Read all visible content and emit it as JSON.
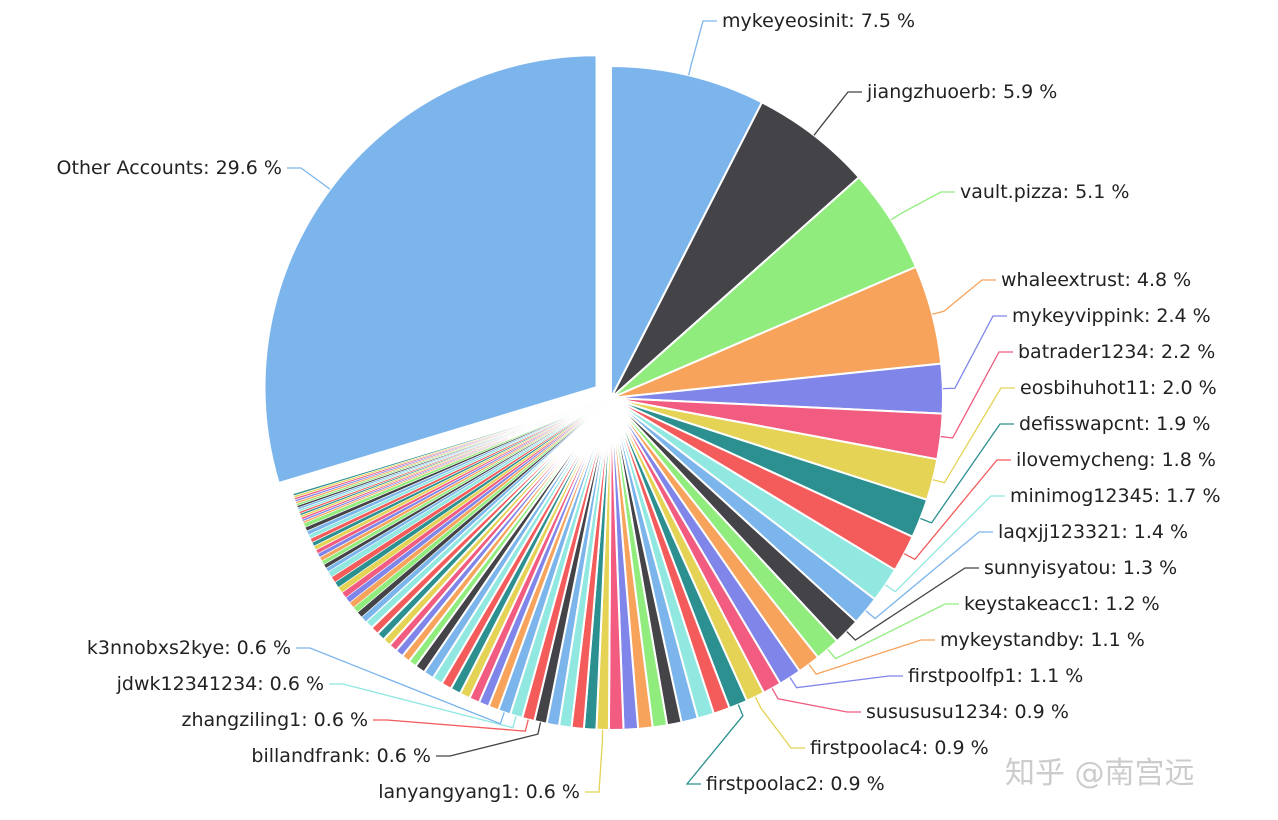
{
  "chart_data": {
    "type": "pie",
    "slices": [
      {
        "label": "mykeyeosinit",
        "value": 7.5,
        "color": "#7cb5ec",
        "labelled": true
      },
      {
        "label": "jiangzhuoerb",
        "value": 5.9,
        "color": "#434348",
        "labelled": true
      },
      {
        "label": "vault.pizza",
        "value": 5.1,
        "color": "#90ed7d",
        "labelled": true
      },
      {
        "label": "whaleextrust",
        "value": 4.8,
        "color": "#f7a35c",
        "labelled": true
      },
      {
        "label": "mykeyvippink",
        "value": 2.4,
        "color": "#8085e9",
        "labelled": true
      },
      {
        "label": "batrader1234",
        "value": 2.2,
        "color": "#f15c80",
        "labelled": true
      },
      {
        "label": "eosbihuhot11",
        "value": 2.0,
        "color": "#e4d354",
        "labelled": true
      },
      {
        "label": "defisswapcnt",
        "value": 1.9,
        "color": "#2b908f",
        "labelled": true
      },
      {
        "label": "ilovemycheng",
        "value": 1.8,
        "color": "#f45b5b",
        "labelled": true
      },
      {
        "label": "minimog12345",
        "value": 1.7,
        "color": "#91e8e1",
        "labelled": true
      },
      {
        "label": "laqxjj123321",
        "value": 1.4,
        "color": "#7cb5ec",
        "labelled": true
      },
      {
        "label": "sunnyisyatou",
        "value": 1.3,
        "color": "#434348",
        "labelled": true
      },
      {
        "label": "keystakeacc1",
        "value": 1.2,
        "color": "#90ed7d",
        "labelled": true
      },
      {
        "label": "mykeystandby",
        "value": 1.1,
        "color": "#f7a35c",
        "labelled": true
      },
      {
        "label": "firstpoolfp1",
        "value": 1.1,
        "color": "#8085e9",
        "labelled": true
      },
      {
        "label": "susususu1234",
        "value": 0.9,
        "color": "#f15c80",
        "labelled": true
      },
      {
        "label": "firstpoolac4",
        "value": 0.9,
        "color": "#e4d354",
        "labelled": true
      },
      {
        "label": "firstpoolac2",
        "value": 0.9,
        "color": "#2b908f",
        "labelled": true
      },
      {
        "label": "",
        "value": 0.8,
        "color": "#f45b5b",
        "labelled": false
      },
      {
        "label": "",
        "value": 0.8,
        "color": "#91e8e1",
        "labelled": false
      },
      {
        "label": "",
        "value": 0.8,
        "color": "#7cb5ec",
        "labelled": false
      },
      {
        "label": "",
        "value": 0.7,
        "color": "#434348",
        "labelled": false
      },
      {
        "label": "",
        "value": 0.7,
        "color": "#90ed7d",
        "labelled": false
      },
      {
        "label": "",
        "value": 0.7,
        "color": "#f7a35c",
        "labelled": false
      },
      {
        "label": "",
        "value": 0.7,
        "color": "#8085e9",
        "labelled": false
      },
      {
        "label": "",
        "value": 0.7,
        "color": "#f15c80",
        "labelled": false
      },
      {
        "label": "lanyangyang1",
        "value": 0.6,
        "color": "#e4d354",
        "labelled": true
      },
      {
        "label": "",
        "value": 0.6,
        "color": "#2b908f",
        "labelled": false
      },
      {
        "label": "",
        "value": 0.6,
        "color": "#f45b5b",
        "labelled": false
      },
      {
        "label": "",
        "value": 0.6,
        "color": "#91e8e1",
        "labelled": false
      },
      {
        "label": "",
        "value": 0.6,
        "color": "#7cb5ec",
        "labelled": false
      },
      {
        "label": "billandfrank",
        "value": 0.6,
        "color": "#434348",
        "labelled": true
      },
      {
        "label": "zhangziling1",
        "value": 0.6,
        "color": "#f45b5b",
        "labelled": true
      },
      {
        "label": "jdwk12341234",
        "value": 0.6,
        "color": "#91e8e1",
        "labelled": true
      },
      {
        "label": "k3nnobxs2kye",
        "value": 0.6,
        "color": "#7cb5ec",
        "labelled": true
      },
      {
        "label": "",
        "value": 0.5,
        "color": "#f7a35c",
        "labelled": false
      },
      {
        "label": "",
        "value": 0.5,
        "color": "#8085e9",
        "labelled": false
      },
      {
        "label": "",
        "value": 0.5,
        "color": "#f15c80",
        "labelled": false
      },
      {
        "label": "",
        "value": 0.5,
        "color": "#e4d354",
        "labelled": false
      },
      {
        "label": "",
        "value": 0.5,
        "color": "#2b908f",
        "labelled": false
      },
      {
        "label": "",
        "value": 0.5,
        "color": "#f45b5b",
        "labelled": false
      },
      {
        "label": "",
        "value": 0.5,
        "color": "#91e8e1",
        "labelled": false
      },
      {
        "label": "",
        "value": 0.5,
        "color": "#7cb5ec",
        "labelled": false
      },
      {
        "label": "",
        "value": 0.5,
        "color": "#434348",
        "labelled": false
      },
      {
        "label": "",
        "value": 0.4,
        "color": "#90ed7d",
        "labelled": false
      },
      {
        "label": "",
        "value": 0.4,
        "color": "#f7a35c",
        "labelled": false
      },
      {
        "label": "",
        "value": 0.4,
        "color": "#8085e9",
        "labelled": false
      },
      {
        "label": "",
        "value": 0.4,
        "color": "#f15c80",
        "labelled": false
      },
      {
        "label": "",
        "value": 0.4,
        "color": "#e4d354",
        "labelled": false
      },
      {
        "label": "",
        "value": 0.4,
        "color": "#2b908f",
        "labelled": false
      },
      {
        "label": "",
        "value": 0.4,
        "color": "#f45b5b",
        "labelled": false
      },
      {
        "label": "",
        "value": 0.4,
        "color": "#91e8e1",
        "labelled": false
      },
      {
        "label": "",
        "value": 0.3,
        "color": "#7cb5ec",
        "labelled": false
      },
      {
        "label": "",
        "value": 0.3,
        "color": "#434348",
        "labelled": false
      },
      {
        "label": "",
        "value": 0.3,
        "color": "#90ed7d",
        "labelled": false
      },
      {
        "label": "",
        "value": 0.3,
        "color": "#f7a35c",
        "labelled": false
      },
      {
        "label": "",
        "value": 0.3,
        "color": "#8085e9",
        "labelled": false
      },
      {
        "label": "",
        "value": 0.3,
        "color": "#f15c80",
        "labelled": false
      },
      {
        "label": "",
        "value": 0.3,
        "color": "#e4d354",
        "labelled": false
      },
      {
        "label": "",
        "value": 0.3,
        "color": "#2b908f",
        "labelled": false
      },
      {
        "label": "",
        "value": 0.3,
        "color": "#f45b5b",
        "labelled": false
      },
      {
        "label": "",
        "value": 0.3,
        "color": "#91e8e1",
        "labelled": false
      },
      {
        "label": "",
        "value": 0.2,
        "color": "#7cb5ec",
        "labelled": false
      },
      {
        "label": "",
        "value": 0.2,
        "color": "#434348",
        "labelled": false
      },
      {
        "label": "",
        "value": 0.2,
        "color": "#90ed7d",
        "labelled": false
      },
      {
        "label": "",
        "value": 0.2,
        "color": "#f7a35c",
        "labelled": false
      },
      {
        "label": "",
        "value": 0.2,
        "color": "#8085e9",
        "labelled": false
      },
      {
        "label": "",
        "value": 0.2,
        "color": "#f15c80",
        "labelled": false
      },
      {
        "label": "",
        "value": 0.2,
        "color": "#e4d354",
        "labelled": false
      },
      {
        "label": "",
        "value": 0.2,
        "color": "#2b908f",
        "labelled": false
      },
      {
        "label": "",
        "value": 0.2,
        "color": "#f45b5b",
        "labelled": false
      },
      {
        "label": "",
        "value": 0.2,
        "color": "#91e8e1",
        "labelled": false
      },
      {
        "label": "",
        "value": 0.2,
        "color": "#7cb5ec",
        "labelled": false
      },
      {
        "label": "",
        "value": 0.2,
        "color": "#434348",
        "labelled": false
      },
      {
        "label": "",
        "value": 0.2,
        "color": "#90ed7d",
        "labelled": false
      },
      {
        "label": "",
        "value": 0.1,
        "color": "#f7a35c",
        "labelled": false
      },
      {
        "label": "",
        "value": 0.1,
        "color": "#8085e9",
        "labelled": false
      },
      {
        "label": "",
        "value": 0.1,
        "color": "#f15c80",
        "labelled": false
      },
      {
        "label": "",
        "value": 0.1,
        "color": "#e4d354",
        "labelled": false
      },
      {
        "label": "",
        "value": 0.1,
        "color": "#2b908f",
        "labelled": false
      },
      {
        "label": "",
        "value": 0.1,
        "color": "#f45b5b",
        "labelled": false
      },
      {
        "label": "",
        "value": 0.1,
        "color": "#91e8e1",
        "labelled": false
      },
      {
        "label": "",
        "value": 0.1,
        "color": "#7cb5ec",
        "labelled": false
      },
      {
        "label": "",
        "value": 0.1,
        "color": "#434348",
        "labelled": false
      },
      {
        "label": "",
        "value": 0.1,
        "color": "#90ed7d",
        "labelled": false
      },
      {
        "label": "",
        "value": 0.1,
        "color": "#f7a35c",
        "labelled": false
      },
      {
        "label": "",
        "value": 0.1,
        "color": "#8085e9",
        "labelled": false
      },
      {
        "label": "",
        "value": 0.1,
        "color": "#f15c80",
        "labelled": false
      },
      {
        "label": "",
        "value": 0.1,
        "color": "#e4d354",
        "labelled": false
      },
      {
        "label": "",
        "value": 0.1,
        "color": "#2b908f",
        "labelled": false
      },
      {
        "label": "Other Accounts",
        "value": 29.6,
        "color": "#7cb5ec",
        "labelled": true,
        "sliced": true
      }
    ]
  },
  "watermark": "知乎 @南宫远"
}
